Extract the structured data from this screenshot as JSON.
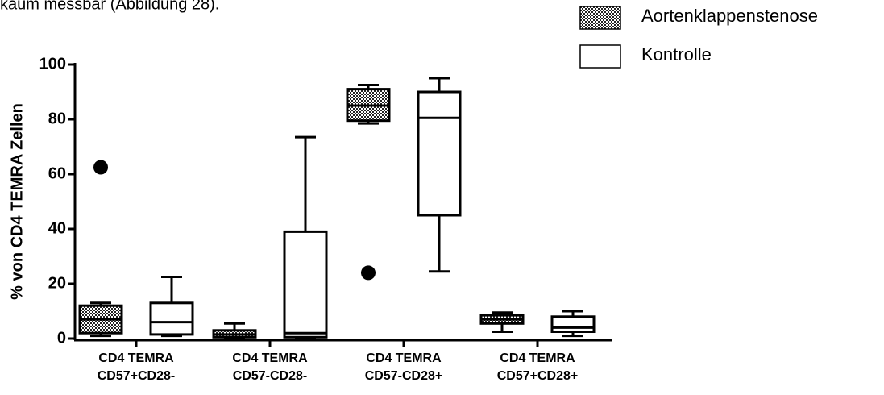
{
  "text_above": "kaum messbar (Abbildung 28).",
  "chart_data": {
    "type": "box",
    "ylabel": "% von CD4 TEMRA Zellen",
    "categories": [
      [
        "CD4 TEMRA",
        "CD57+CD28-"
      ],
      [
        "CD4 TEMRA",
        "CD57-CD28-"
      ],
      [
        "CD4 TEMRA",
        "CD57-CD28+"
      ],
      [
        "CD4 TEMRA",
        "CD57+CD28+"
      ]
    ],
    "ylim": [
      0,
      100
    ],
    "yticks": [
      0,
      20,
      40,
      60,
      80,
      100
    ],
    "legend": "top-right",
    "series": [
      {
        "name": "Aortenklappenstenose",
        "fill": "checker",
        "color": "#000000",
        "values": [
          {
            "min": 1,
            "q1": 2,
            "median": 7,
            "q3": 12,
            "max": 13
          },
          {
            "min": 0,
            "q1": 0.5,
            "median": 1.5,
            "q3": 3,
            "max": 5.5
          },
          {
            "min": 78.5,
            "q1": 79.5,
            "median": 85,
            "q3": 91,
            "max": 92.5
          },
          {
            "min": 2.5,
            "q1": 5.5,
            "median": 7,
            "q3": 8.5,
            "max": 9.5
          }
        ],
        "outliers": [
          [
            62.5
          ],
          [],
          [
            24
          ],
          []
        ]
      },
      {
        "name": "Kontrolle",
        "fill": "white",
        "color": "#000000",
        "values": [
          {
            "min": 1,
            "q1": 1.5,
            "median": 6,
            "q3": 13,
            "max": 22.5
          },
          {
            "min": 0,
            "q1": 0.5,
            "median": 2,
            "q3": 39,
            "max": 73.5
          },
          {
            "min": 24.5,
            "q1": 45,
            "median": 80.5,
            "q3": 90,
            "max": 95
          },
          {
            "min": 1,
            "q1": 2.5,
            "median": 4,
            "q3": 8,
            "max": 10
          }
        ],
        "outliers": [
          [],
          [],
          [],
          []
        ]
      }
    ]
  }
}
